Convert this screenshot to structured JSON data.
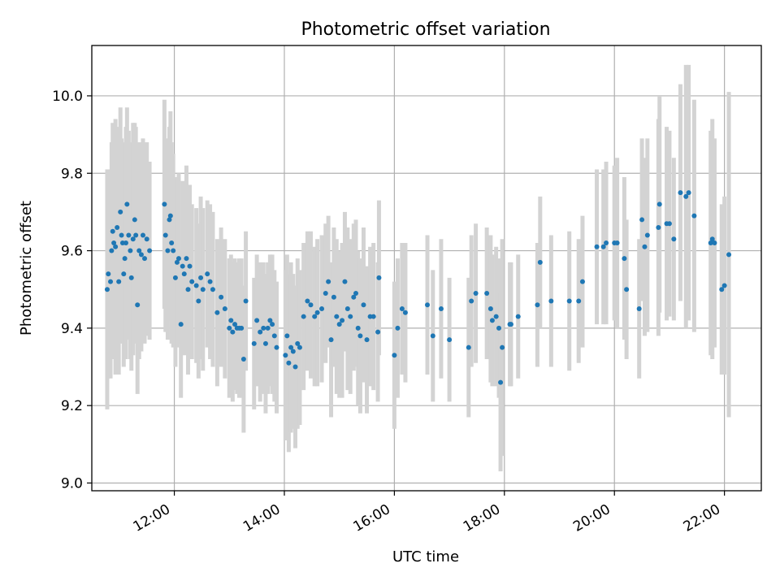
{
  "chart_data": {
    "type": "scatter",
    "title": "Photometric offset variation",
    "xlabel": "UTC time",
    "ylabel": "Photometric offset",
    "x_unit": "hours UTC",
    "xlim": [
      10.5,
      22.67
    ],
    "ylim": [
      8.98,
      10.13
    ],
    "grid": true,
    "legend": "none",
    "x_ticks": [
      {
        "value": 12,
        "label": "12:00"
      },
      {
        "value": 14,
        "label": "14:00"
      },
      {
        "value": 16,
        "label": "16:00"
      },
      {
        "value": 18,
        "label": "18:00"
      },
      {
        "value": 20,
        "label": "20:00"
      },
      {
        "value": 22,
        "label": "22:00"
      }
    ],
    "y_ticks": [
      {
        "value": 9.0,
        "label": "9.0"
      },
      {
        "value": 9.2,
        "label": "9.2"
      },
      {
        "value": 9.4,
        "label": "9.4"
      },
      {
        "value": 9.6,
        "label": "9.6"
      },
      {
        "value": 9.8,
        "label": "9.8"
      },
      {
        "value": 10.0,
        "label": "10.0"
      }
    ],
    "colors": {
      "points": "#1f77b4",
      "errorbars": "#d3d3d3"
    },
    "series": [
      {
        "columns": [
          "x",
          "y",
          "yerr"
        ],
        "points": [
          [
            10.78,
            9.5,
            0.31
          ],
          [
            10.8,
            9.54,
            0.27
          ],
          [
            10.84,
            9.52,
            0.25
          ],
          [
            10.86,
            9.6,
            0.28
          ],
          [
            10.88,
            9.65,
            0.28
          ],
          [
            10.9,
            9.62,
            0.3
          ],
          [
            10.93,
            9.61,
            0.33
          ],
          [
            10.96,
            9.66,
            0.26
          ],
          [
            10.99,
            9.52,
            0.24
          ],
          [
            11.02,
            9.7,
            0.27
          ],
          [
            11.04,
            9.64,
            0.25
          ],
          [
            11.06,
            9.62,
            0.26
          ],
          [
            11.08,
            9.54,
            0.24
          ],
          [
            11.1,
            9.58,
            0.26
          ],
          [
            11.12,
            9.62,
            0.3
          ],
          [
            11.14,
            9.72,
            0.25
          ],
          [
            11.17,
            9.64,
            0.27
          ],
          [
            11.2,
            9.6,
            0.28
          ],
          [
            11.22,
            9.53,
            0.24
          ],
          [
            11.25,
            9.63,
            0.3
          ],
          [
            11.28,
            9.68,
            0.25
          ],
          [
            11.3,
            9.64,
            0.28
          ],
          [
            11.33,
            9.46,
            0.23
          ],
          [
            11.36,
            9.6,
            0.28
          ],
          [
            11.4,
            9.59,
            0.25
          ],
          [
            11.43,
            9.64,
            0.25
          ],
          [
            11.46,
            9.58,
            0.22
          ],
          [
            11.5,
            9.63,
            0.25
          ],
          [
            11.55,
            9.6,
            0.23
          ],
          [
            11.82,
            9.72,
            0.27
          ],
          [
            11.84,
            9.64,
            0.25
          ],
          [
            11.88,
            9.6,
            0.23
          ],
          [
            11.91,
            9.68,
            0.24
          ],
          [
            11.93,
            9.69,
            0.27
          ],
          [
            11.95,
            9.62,
            0.26
          ],
          [
            11.98,
            9.6,
            0.25
          ],
          [
            12.02,
            9.53,
            0.23
          ],
          [
            12.05,
            9.57,
            0.22
          ],
          [
            12.08,
            9.58,
            0.22
          ],
          [
            12.12,
            9.41,
            0.19
          ],
          [
            12.15,
            9.56,
            0.22
          ],
          [
            12.18,
            9.54,
            0.21
          ],
          [
            12.22,
            9.58,
            0.24
          ],
          [
            12.25,
            9.5,
            0.22
          ],
          [
            12.28,
            9.56,
            0.21
          ],
          [
            12.32,
            9.52,
            0.2
          ],
          [
            12.4,
            9.51,
            0.2
          ],
          [
            12.44,
            9.47,
            0.2
          ],
          [
            12.48,
            9.53,
            0.21
          ],
          [
            12.52,
            9.5,
            0.21
          ],
          [
            12.6,
            9.54,
            0.19
          ],
          [
            12.65,
            9.52,
            0.2
          ],
          [
            12.7,
            9.5,
            0.2
          ],
          [
            12.78,
            9.44,
            0.19
          ],
          [
            12.85,
            9.48,
            0.18
          ],
          [
            12.92,
            9.45,
            0.18
          ],
          [
            13.0,
            9.4,
            0.18
          ],
          [
            13.03,
            9.42,
            0.17
          ],
          [
            13.06,
            9.39,
            0.18
          ],
          [
            13.1,
            9.41,
            0.17
          ],
          [
            13.14,
            9.4,
            0.17
          ],
          [
            13.18,
            9.4,
            0.18
          ],
          [
            13.22,
            9.4,
            0.18
          ],
          [
            13.26,
            9.32,
            0.19
          ],
          [
            13.3,
            9.47,
            0.18
          ],
          [
            13.45,
            9.36,
            0.17
          ],
          [
            13.5,
            9.42,
            0.17
          ],
          [
            13.56,
            9.39,
            0.18
          ],
          [
            13.62,
            9.4,
            0.17
          ],
          [
            13.66,
            9.36,
            0.18
          ],
          [
            13.7,
            9.4,
            0.17
          ],
          [
            13.74,
            9.42,
            0.17
          ],
          [
            13.78,
            9.41,
            0.18
          ],
          [
            13.82,
            9.38,
            0.17
          ],
          [
            13.86,
            9.35,
            0.17
          ],
          [
            14.02,
            9.33,
            0.22
          ],
          [
            14.05,
            9.38,
            0.21
          ],
          [
            14.08,
            9.31,
            0.23
          ],
          [
            14.12,
            9.35,
            0.22
          ],
          [
            14.16,
            9.34,
            0.2
          ],
          [
            14.2,
            9.3,
            0.21
          ],
          [
            14.24,
            9.36,
            0.22
          ],
          [
            14.28,
            9.35,
            0.2
          ],
          [
            14.35,
            9.43,
            0.19
          ],
          [
            14.42,
            9.47,
            0.18
          ],
          [
            14.48,
            9.46,
            0.19
          ],
          [
            14.55,
            9.43,
            0.18
          ],
          [
            14.6,
            9.44,
            0.19
          ],
          [
            14.68,
            9.45,
            0.19
          ],
          [
            14.75,
            9.49,
            0.18
          ],
          [
            14.8,
            9.52,
            0.17
          ],
          [
            14.85,
            9.37,
            0.2
          ],
          [
            14.9,
            9.48,
            0.18
          ],
          [
            14.95,
            9.43,
            0.2
          ],
          [
            15.0,
            9.41,
            0.19
          ],
          [
            15.05,
            9.42,
            0.2
          ],
          [
            15.1,
            9.52,
            0.18
          ],
          [
            15.15,
            9.45,
            0.21
          ],
          [
            15.2,
            9.43,
            0.2
          ],
          [
            15.26,
            9.48,
            0.19
          ],
          [
            15.3,
            9.49,
            0.19
          ],
          [
            15.34,
            9.4,
            0.2
          ],
          [
            15.38,
            9.38,
            0.2
          ],
          [
            15.44,
            9.46,
            0.2
          ],
          [
            15.5,
            9.37,
            0.19
          ],
          [
            15.56,
            9.43,
            0.18
          ],
          [
            15.62,
            9.43,
            0.19
          ],
          [
            15.7,
            9.39,
            0.18
          ],
          [
            15.72,
            9.53,
            0.2
          ],
          [
            16.0,
            9.33,
            0.19
          ],
          [
            16.06,
            9.4,
            0.18
          ],
          [
            16.14,
            9.45,
            0.17
          ],
          [
            16.2,
            9.44,
            0.18
          ],
          [
            16.6,
            9.46,
            0.18
          ],
          [
            16.7,
            9.38,
            0.17
          ],
          [
            16.85,
            9.45,
            0.18
          ],
          [
            17.0,
            9.37,
            0.16
          ],
          [
            17.35,
            9.35,
            0.18
          ],
          [
            17.4,
            9.47,
            0.17
          ],
          [
            17.48,
            9.49,
            0.18
          ],
          [
            17.68,
            9.49,
            0.17
          ],
          [
            17.75,
            9.45,
            0.19
          ],
          [
            17.78,
            9.42,
            0.17
          ],
          [
            17.85,
            9.43,
            0.18
          ],
          [
            17.9,
            9.4,
            0.18
          ],
          [
            17.93,
            9.26,
            0.23
          ],
          [
            17.96,
            9.35,
            0.28
          ],
          [
            18.1,
            9.41,
            0.16
          ],
          [
            18.12,
            9.41,
            0.16
          ],
          [
            18.25,
            9.43,
            0.16
          ],
          [
            18.6,
            9.46,
            0.16
          ],
          [
            18.65,
            9.57,
            0.17
          ],
          [
            18.85,
            9.47,
            0.17
          ],
          [
            19.18,
            9.47,
            0.18
          ],
          [
            19.35,
            9.47,
            0.16
          ],
          [
            19.42,
            9.52,
            0.17
          ],
          [
            19.68,
            9.61,
            0.2
          ],
          [
            19.8,
            9.61,
            0.2
          ],
          [
            19.85,
            9.62,
            0.21
          ],
          [
            20.0,
            9.62,
            0.2
          ],
          [
            20.05,
            9.62,
            0.22
          ],
          [
            20.18,
            9.58,
            0.21
          ],
          [
            20.22,
            9.5,
            0.18
          ],
          [
            20.45,
            9.45,
            0.18
          ],
          [
            20.5,
            9.68,
            0.21
          ],
          [
            20.55,
            9.61,
            0.23
          ],
          [
            20.6,
            9.64,
            0.25
          ],
          [
            20.8,
            9.66,
            0.28
          ],
          [
            20.82,
            9.72,
            0.28
          ],
          [
            20.95,
            9.67,
            0.25
          ],
          [
            21.0,
            9.67,
            0.24
          ],
          [
            21.08,
            9.63,
            0.21
          ],
          [
            21.2,
            9.75,
            0.28
          ],
          [
            21.3,
            9.74,
            0.34
          ],
          [
            21.35,
            9.75,
            0.33
          ],
          [
            21.45,
            9.69,
            0.3
          ],
          [
            21.75,
            9.62,
            0.29
          ],
          [
            21.78,
            9.63,
            0.31
          ],
          [
            21.82,
            9.62,
            0.27
          ],
          [
            21.95,
            9.5,
            0.22
          ],
          [
            22.0,
            9.51,
            0.23
          ],
          [
            22.08,
            9.59,
            0.42
          ]
        ]
      }
    ]
  }
}
